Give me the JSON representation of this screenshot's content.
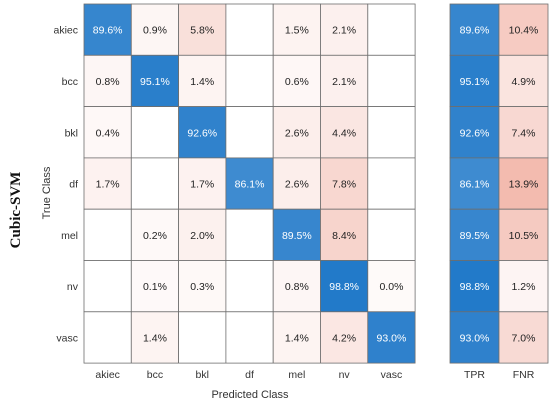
{
  "side_title": "Cubic-SVM",
  "chart_data": {
    "type": "heatmap",
    "title": "",
    "xlabel": "Predicted Class",
    "ylabel": "True Class",
    "classes": [
      "akiec",
      "bcc",
      "bkl",
      "df",
      "mel",
      "nv",
      "vasc"
    ],
    "cells": [
      [
        89.6,
        0.9,
        5.8,
        null,
        1.5,
        2.1,
        null
      ],
      [
        0.8,
        95.1,
        1.4,
        null,
        0.6,
        2.1,
        null
      ],
      [
        0.4,
        null,
        92.6,
        null,
        2.6,
        4.4,
        null
      ],
      [
        1.7,
        null,
        1.7,
        86.1,
        2.6,
        7.8,
        null
      ],
      [
        null,
        0.2,
        2.0,
        null,
        89.5,
        8.4,
        null
      ],
      [
        null,
        0.1,
        0.3,
        null,
        0.8,
        98.8,
        0.0
      ],
      [
        null,
        1.4,
        null,
        null,
        1.4,
        4.2,
        93.0
      ]
    ],
    "summary_columns": [
      "TPR",
      "FNR"
    ],
    "summary": [
      [
        89.6,
        10.4
      ],
      [
        95.1,
        4.9
      ],
      [
        92.6,
        7.4
      ],
      [
        86.1,
        13.9
      ],
      [
        89.5,
        10.5
      ],
      [
        98.8,
        1.2
      ],
      [
        93.0,
        7.0
      ]
    ],
    "value_suffix": "%",
    "colors": {
      "correct": "#1f78c8",
      "error": "#e8806a",
      "grid": "#6e6e6e",
      "text_dark": "#222222",
      "text_light": "#ffffff"
    }
  }
}
